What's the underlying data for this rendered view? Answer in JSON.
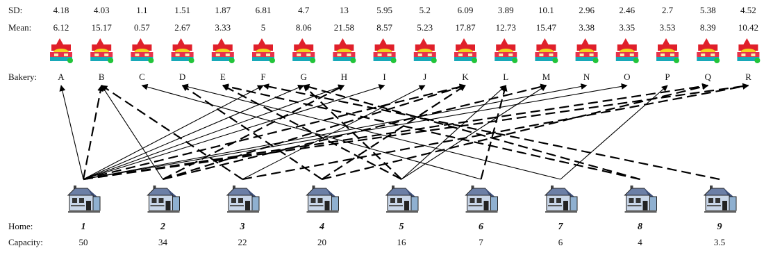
{
  "labels": {
    "sd": "SD:",
    "mean": "Mean:",
    "bakery": "Bakery:",
    "home": "Home:",
    "capacity": "Capacity:"
  },
  "bakeries": [
    {
      "letter": "A",
      "sd": "4.18",
      "mean": "6.12"
    },
    {
      "letter": "B",
      "sd": "4.03",
      "mean": "15.17"
    },
    {
      "letter": "C",
      "sd": "1.1",
      "mean": "0.57"
    },
    {
      "letter": "D",
      "sd": "1.51",
      "mean": "2.67"
    },
    {
      "letter": "E",
      "sd": "1.87",
      "mean": "3.33"
    },
    {
      "letter": "F",
      "sd": "6.81",
      "mean": "5"
    },
    {
      "letter": "G",
      "sd": "4.7",
      "mean": "8.06"
    },
    {
      "letter": "H",
      "sd": "13",
      "mean": "21.58"
    },
    {
      "letter": "I",
      "sd": "5.95",
      "mean": "8.57"
    },
    {
      "letter": "J",
      "sd": "5.2",
      "mean": "5.23"
    },
    {
      "letter": "K",
      "sd": "6.09",
      "mean": "17.87"
    },
    {
      "letter": "L",
      "sd": "3.89",
      "mean": "12.73"
    },
    {
      "letter": "M",
      "sd": "10.1",
      "mean": "15.47"
    },
    {
      "letter": "N",
      "sd": "2.96",
      "mean": "3.38"
    },
    {
      "letter": "O",
      "sd": "2.46",
      "mean": "3.35"
    },
    {
      "letter": "P",
      "sd": "2.7",
      "mean": "3.53"
    },
    {
      "letter": "Q",
      "sd": "5.38",
      "mean": "8.39"
    },
    {
      "letter": "R",
      "sd": "4.52",
      "mean": "10.42"
    }
  ],
  "homes": [
    {
      "id": "1",
      "capacity": "50"
    },
    {
      "id": "2",
      "capacity": "34"
    },
    {
      "id": "3",
      "capacity": "22"
    },
    {
      "id": "4",
      "capacity": "20"
    },
    {
      "id": "5",
      "capacity": "16"
    },
    {
      "id": "6",
      "capacity": "7"
    },
    {
      "id": "7",
      "capacity": "6"
    },
    {
      "id": "8",
      "capacity": "4"
    },
    {
      "id": "9",
      "capacity": "3.5"
    }
  ],
  "edges": [
    {
      "home": "1",
      "bakery": "A",
      "style": "solid"
    },
    {
      "home": "1",
      "bakery": "B",
      "style": "dashed"
    },
    {
      "home": "1",
      "bakery": "F",
      "style": "solid"
    },
    {
      "home": "1",
      "bakery": "G",
      "style": "solid"
    },
    {
      "home": "1",
      "bakery": "H",
      "style": "solid"
    },
    {
      "home": "1",
      "bakery": "I",
      "style": "solid"
    },
    {
      "home": "1",
      "bakery": "K",
      "style": "dashed"
    },
    {
      "home": "1",
      "bakery": "N",
      "style": "solid"
    },
    {
      "home": "1",
      "bakery": "O",
      "style": "solid"
    },
    {
      "home": "1",
      "bakery": "Q",
      "style": "dashed"
    },
    {
      "home": "1",
      "bakery": "R",
      "style": "dashed"
    },
    {
      "home": "2",
      "bakery": "B",
      "style": "solid"
    },
    {
      "home": "2",
      "bakery": "H",
      "style": "dashed"
    },
    {
      "home": "2",
      "bakery": "K",
      "style": "dashed"
    },
    {
      "home": "2",
      "bakery": "M",
      "style": "dashed"
    },
    {
      "home": "3",
      "bakery": "B",
      "style": "dashed"
    },
    {
      "home": "3",
      "bakery": "J",
      "style": "solid"
    },
    {
      "home": "3",
      "bakery": "R",
      "style": "dashed"
    },
    {
      "home": "4",
      "bakery": "D",
      "style": "dashed"
    },
    {
      "home": "4",
      "bakery": "K",
      "style": "dashed"
    },
    {
      "home": "4",
      "bakery": "Q",
      "style": "dashed"
    },
    {
      "home": "5",
      "bakery": "E",
      "style": "dashed"
    },
    {
      "home": "5",
      "bakery": "G",
      "style": "dashed"
    },
    {
      "home": "5",
      "bakery": "L",
      "style": "solid"
    },
    {
      "home": "5",
      "bakery": "M",
      "style": "solid"
    },
    {
      "home": "6",
      "bakery": "C",
      "style": "solid"
    },
    {
      "home": "6",
      "bakery": "L",
      "style": "dashed"
    },
    {
      "home": "7",
      "bakery": "D",
      "style": "solid"
    },
    {
      "home": "7",
      "bakery": "P",
      "style": "solid"
    },
    {
      "home": "8",
      "bakery": "E",
      "style": "dashed"
    },
    {
      "home": "8",
      "bakery": "G",
      "style": "dashed"
    },
    {
      "home": "9",
      "bakery": "F",
      "style": "dashed"
    }
  ]
}
